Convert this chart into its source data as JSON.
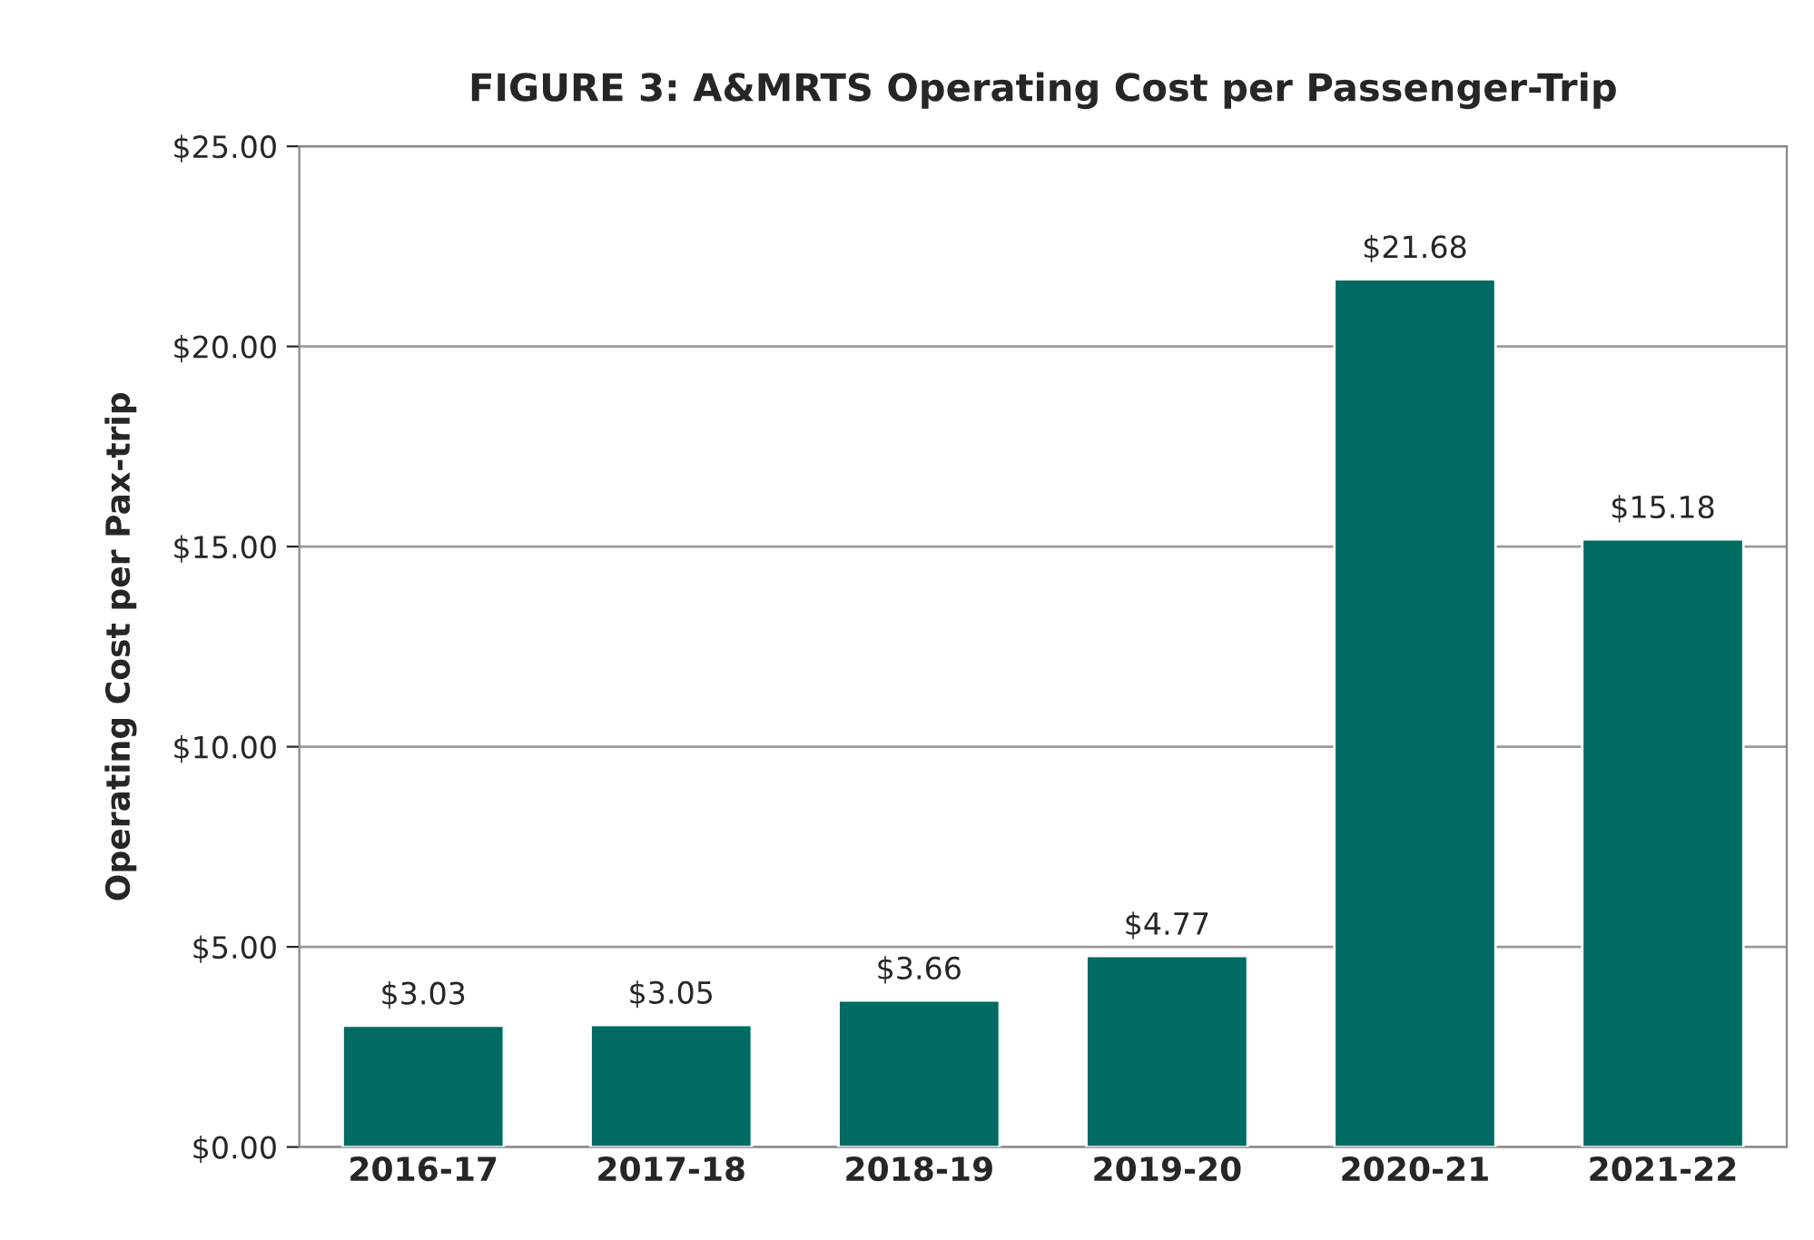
{
  "chart_data": {
    "type": "bar",
    "title": "FIGURE 3: A&MRTS Operating Cost per Passenger-Trip",
    "ylabel": "Operating Cost per Pax-trip",
    "categories": [
      "2016-17",
      "2017-18",
      "2018-19",
      "2019-20",
      "2020-21",
      "2021-22"
    ],
    "values": [
      3.03,
      3.05,
      3.66,
      4.77,
      21.68,
      15.18
    ],
    "value_labels": [
      "$3.03",
      "$3.05",
      "$3.66",
      "$4.77",
      "$21.68",
      "$15.18"
    ],
    "color": "#006b63",
    "ylim": [
      0,
      25
    ],
    "yticks": [
      {
        "value": 0,
        "label": "$0.00"
      },
      {
        "value": 5,
        "label": "$5.00"
      },
      {
        "value": 10,
        "label": "$10.00"
      },
      {
        "value": 15,
        "label": "$15.00"
      },
      {
        "value": 20,
        "label": "$20.00"
      },
      {
        "value": 25,
        "label": "$25.00"
      }
    ],
    "grid": "y"
  }
}
